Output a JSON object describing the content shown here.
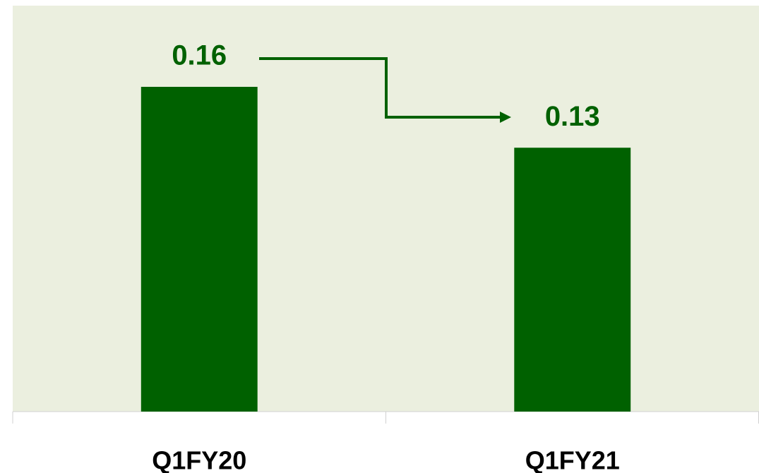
{
  "chart_data": {
    "type": "bar",
    "categories": [
      "Q1FY20",
      "Q1FY21"
    ],
    "values": [
      0.16,
      0.13
    ],
    "color": "#006100",
    "ylim": [
      0,
      0.2
    ]
  }
}
